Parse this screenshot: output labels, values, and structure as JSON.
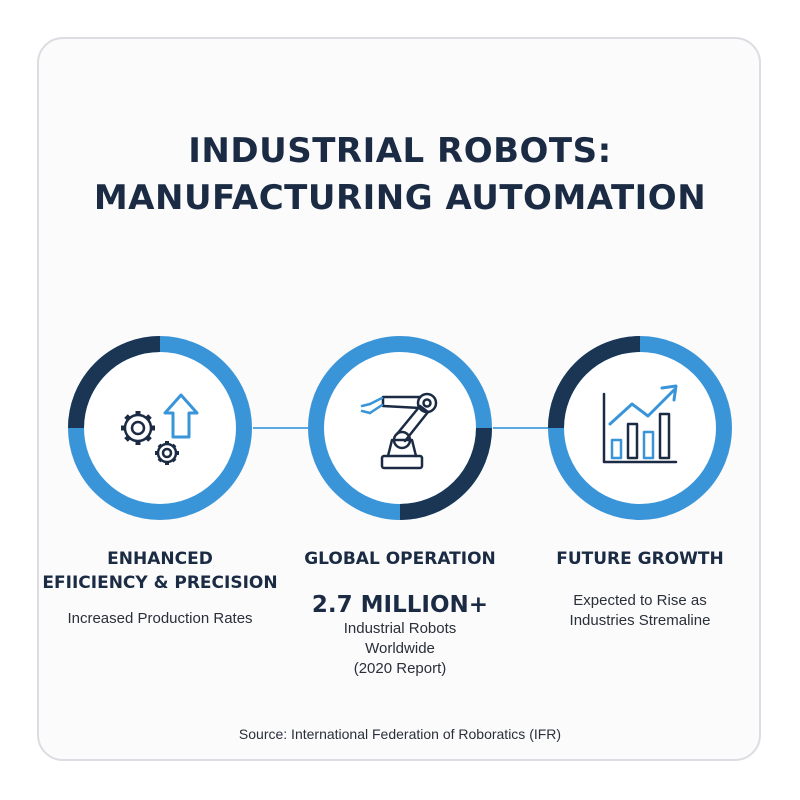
{
  "title": {
    "line1": "INDUSTRIAL ROBOTS:",
    "line2": "MANUFACTURING AUTOMATION"
  },
  "colors": {
    "dark_navy": "#1b3555",
    "light_blue": "#3a95d8",
    "line_blue": "#5aa9e0",
    "text_dark": "#1b2b44"
  },
  "nodes": [
    {
      "icon": "gears-up-arrow-icon",
      "heading_line1": "ENHANCED",
      "heading_line2": "EFIICIENCY & PRECISION",
      "sub": "Increased Production Rates"
    },
    {
      "icon": "robot-arm-icon",
      "heading_line1": "GLOBAL OPERATION",
      "big_number": "2.7 MILLION+",
      "sub_line1": "Industrial Robots",
      "sub_line2": "Worldwide",
      "sub_line3": "(2020 Report)"
    },
    {
      "icon": "bar-chart-trend-icon",
      "heading_line1": "FUTURE GROWTH",
      "sub_line1": "Expected to Rise as",
      "sub_line2": "Industries Stremaline"
    }
  ],
  "source": "Source: International Federation of Roboratics (IFR)"
}
